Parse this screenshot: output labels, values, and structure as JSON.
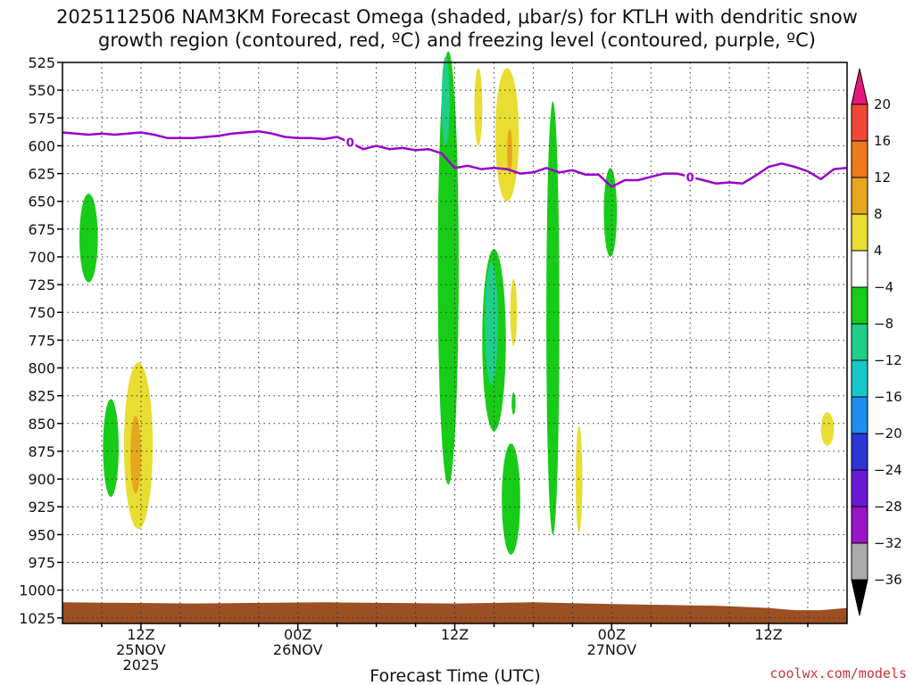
{
  "title": {
    "line1": "2025112506 NAM3KM Forecast Omega (shaded, μbar/s) for KTLH with dendritic snow",
    "line2": "growth region (contoured, red, ºC) and freezing level (contoured, purple, ºC)"
  },
  "credit": "coolwx.com/models",
  "chart_data": {
    "type": "heatmap",
    "xlabel": "Forecast Time (UTC)",
    "ylabel": "",
    "x_unit": "forecast hour from 2025-11-25 06Z",
    "xlim": [
      0,
      60
    ],
    "ylim": [
      1030,
      525
    ],
    "y_ticks": [
      525,
      550,
      575,
      600,
      625,
      650,
      675,
      700,
      725,
      750,
      775,
      800,
      825,
      850,
      875,
      900,
      925,
      950,
      975,
      1000,
      1025
    ],
    "x_ticks": [
      {
        "hour": 6,
        "label": [
          "12Z",
          "25NOV",
          "2025"
        ]
      },
      {
        "hour": 18,
        "label": [
          "00Z",
          "26NOV"
        ]
      },
      {
        "hour": 30,
        "label": [
          "12Z"
        ]
      },
      {
        "hour": 42,
        "label": [
          "00Z",
          "27NOV"
        ]
      },
      {
        "hour": 54,
        "label": [
          "12Z"
        ]
      }
    ],
    "grid": true,
    "colorbar": {
      "levels": [
        -36,
        -32,
        -28,
        -24,
        -20,
        -16,
        -12,
        -8,
        -4,
        4,
        8,
        12,
        16,
        20
      ],
      "labels": [
        "20",
        "16",
        "12",
        "8",
        "4",
        "−4",
        "−8",
        "−12",
        "−16",
        "−20",
        "−24",
        "−28",
        "−32",
        "−36"
      ],
      "colors": [
        "#000000",
        "#aaaaaa",
        "#9a14c8",
        "#6a1ad6",
        "#2d35d4",
        "#1e8ef0",
        "#18c8c8",
        "#1fce8a",
        "#17cc17",
        "#ffffff",
        "#e8dd30",
        "#e6a61e",
        "#ec7a1e",
        "#f04838",
        "#e8157e"
      ]
    },
    "freezing_level": {
      "label": "0",
      "color": "#9900cc",
      "points": [
        [
          0,
          588
        ],
        [
          1,
          589
        ],
        [
          2,
          590
        ],
        [
          3,
          589
        ],
        [
          4,
          590
        ],
        [
          5,
          589
        ],
        [
          6,
          588
        ],
        [
          7,
          590
        ],
        [
          8,
          593
        ],
        [
          9,
          593
        ],
        [
          10,
          593
        ],
        [
          11,
          592
        ],
        [
          12,
          591
        ],
        [
          13,
          589
        ],
        [
          14,
          588
        ],
        [
          15,
          587
        ],
        [
          16,
          589
        ],
        [
          17,
          592
        ],
        [
          18,
          593
        ],
        [
          19,
          593
        ],
        [
          20,
          594
        ],
        [
          21,
          592
        ],
        [
          22,
          597
        ],
        [
          23,
          603
        ],
        [
          24,
          600
        ],
        [
          25,
          603
        ],
        [
          26,
          602
        ],
        [
          27,
          604
        ],
        [
          28,
          603
        ],
        [
          29,
          607
        ],
        [
          30,
          620
        ],
        [
          31,
          618
        ],
        [
          32,
          621
        ],
        [
          33,
          620
        ],
        [
          34,
          621
        ],
        [
          35,
          625
        ],
        [
          36,
          624
        ],
        [
          37,
          620
        ],
        [
          38,
          624
        ],
        [
          39,
          622
        ],
        [
          40,
          626
        ],
        [
          41,
          626
        ],
        [
          42,
          637
        ],
        [
          43,
          631
        ],
        [
          44,
          631
        ],
        [
          45,
          628
        ],
        [
          46,
          625
        ],
        [
          47,
          625
        ],
        [
          48,
          628
        ],
        [
          49,
          631
        ],
        [
          50,
          634
        ],
        [
          51,
          633
        ],
        [
          52,
          634
        ],
        [
          53,
          627
        ],
        [
          54,
          619
        ],
        [
          55,
          616
        ],
        [
          56,
          619
        ],
        [
          57,
          623
        ],
        [
          58,
          630
        ],
        [
          59,
          621
        ],
        [
          60,
          620
        ]
      ]
    },
    "omega_features": [
      {
        "value": -6,
        "center": [
          2.0,
          683
        ],
        "half_width": [
          0.7,
          40
        ]
      },
      {
        "value": -6,
        "center": [
          3.7,
          872
        ],
        "half_width": [
          0.6,
          44
        ]
      },
      {
        "value": 6,
        "center": [
          5.8,
          870
        ],
        "half_width": [
          1.1,
          75
        ]
      },
      {
        "value": 10,
        "center": [
          5.6,
          878
        ],
        "half_width": [
          0.4,
          35
        ]
      },
      {
        "value": -6,
        "center": [
          29.5,
          710
        ],
        "half_width": [
          0.8,
          195
        ]
      },
      {
        "value": -10,
        "center": [
          29.3,
          560
        ],
        "half_width": [
          0.3,
          40
        ]
      },
      {
        "value": 6,
        "center": [
          31.8,
          565
        ],
        "half_width": [
          0.3,
          35
        ]
      },
      {
        "value": 6,
        "center": [
          34.0,
          590
        ],
        "half_width": [
          0.9,
          60
        ]
      },
      {
        "value": 10,
        "center": [
          34.2,
          605
        ],
        "half_width": [
          0.2,
          20
        ]
      },
      {
        "value": -6,
        "center": [
          33.0,
          775
        ],
        "half_width": [
          0.9,
          82
        ]
      },
      {
        "value": -10,
        "center": [
          32.8,
          760
        ],
        "half_width": [
          0.5,
          55
        ]
      },
      {
        "value": 6,
        "center": [
          34.5,
          750
        ],
        "half_width": [
          0.25,
          30
        ]
      },
      {
        "value": -6,
        "center": [
          34.5,
          832
        ],
        "half_width": [
          0.15,
          10
        ]
      },
      {
        "value": -6,
        "center": [
          34.3,
          918
        ],
        "half_width": [
          0.7,
          50
        ]
      },
      {
        "value": -6,
        "center": [
          37.5,
          755
        ],
        "half_width": [
          0.5,
          195
        ]
      },
      {
        "value": 6,
        "center": [
          39.5,
          900
        ],
        "half_width": [
          0.25,
          48
        ]
      },
      {
        "value": -6,
        "center": [
          41.9,
          660
        ],
        "half_width": [
          0.5,
          40
        ]
      },
      {
        "value": 6,
        "center": [
          58.5,
          855
        ],
        "half_width": [
          0.5,
          15
        ]
      }
    ],
    "ground": {
      "color": "#9b4f22",
      "points": [
        [
          0,
          1011
        ],
        [
          10,
          1012
        ],
        [
          20,
          1011
        ],
        [
          30,
          1012
        ],
        [
          36,
          1011
        ],
        [
          40,
          1012
        ],
        [
          44,
          1013
        ],
        [
          50,
          1014
        ],
        [
          54,
          1016
        ],
        [
          56,
          1018
        ],
        [
          58,
          1018
        ],
        [
          60,
          1016
        ]
      ]
    }
  }
}
